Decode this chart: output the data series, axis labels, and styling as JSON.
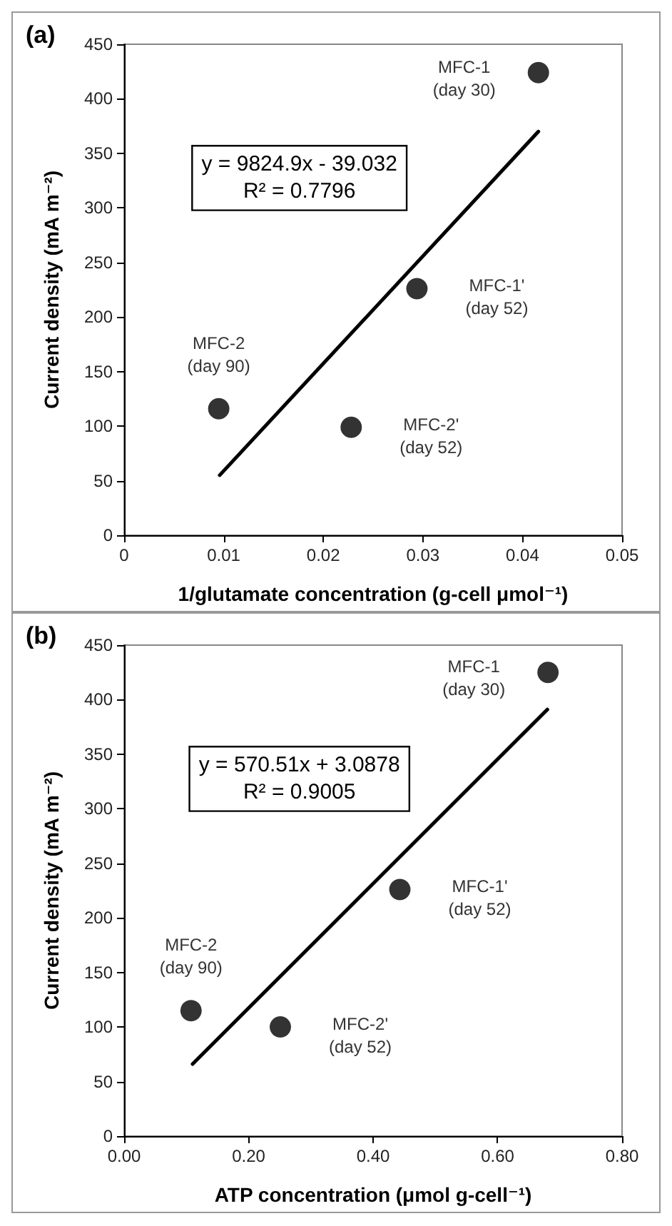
{
  "chart_data": [
    {
      "type": "scatter",
      "title": "(a)",
      "xlabel": "1/glutamate concentration (g-cell μmol⁻¹)",
      "ylabel": "Current density (mA m⁻²)",
      "marker": "circle",
      "x": [
        0.0416,
        0.0294,
        0.0095,
        0.0228
      ],
      "series": [
        {
          "color": "#000000",
          "values": [
            424,
            226,
            116,
            99
          ]
        },
        {
          "type": "line",
          "color": "#000000",
          "marker": "none",
          "x": [
            0.0096,
            0.0416
          ],
          "values": [
            55,
            370
          ]
        }
      ],
      "xlim": [
        0,
        0.05
      ],
      "xticks": [
        0,
        0.01,
        0.02,
        0.03,
        0.04,
        0.05
      ],
      "ylim": [
        0,
        450
      ],
      "yticks": [
        0,
        50,
        100,
        150,
        200,
        250,
        300,
        350,
        400,
        450
      ],
      "annotations": [
        "y = 9824.9x - 39.032\nR² = 0.7796",
        {
          "text": "MFC-1\n(day 30)",
          "x": 0.0416,
          "y": 424
        },
        {
          "text": "MFC-1'\n(day 52)",
          "x": 0.0294,
          "y": 226
        },
        {
          "text": "MFC-2\n(day 90)",
          "x": 0.0095,
          "y": 116
        },
        {
          "text": "MFC-2'\n(day 52)",
          "x": 0.0228,
          "y": 99
        }
      ]
    },
    {
      "type": "scatter",
      "title": "(b)",
      "xlabel": "ATP concentration (μmol g-cell⁻¹)",
      "ylabel": "Current density (mA m⁻²)",
      "marker": "circle",
      "x": [
        0.681,
        0.443,
        0.1075,
        0.251
      ],
      "series": [
        {
          "color": "#000000",
          "values": [
            425,
            226,
            115,
            100
          ]
        },
        {
          "type": "line",
          "color": "#000000",
          "marker": "none",
          "x": [
            0.11,
            0.68
          ],
          "values": [
            66,
            391
          ]
        }
      ],
      "xlim": [
        0,
        0.8
      ],
      "xticks": [
        {
          "value": 0,
          "label": "0.00"
        },
        {
          "value": 0.2,
          "label": "0.20"
        },
        {
          "value": 0.4,
          "label": "0.40"
        },
        {
          "value": 0.6,
          "label": "0.60"
        },
        {
          "value": 0.8,
          "label": "0.80"
        }
      ],
      "ylim": [
        0,
        450
      ],
      "yticks": [
        0,
        50,
        100,
        150,
        200,
        250,
        300,
        350,
        400,
        450
      ],
      "annotations": [
        "y = 570.51x + 3.0878\nR² = 0.9005",
        {
          "text": "MFC-1\n(day 30)",
          "x": 0.681,
          "y": 425
        },
        {
          "text": "MFC-1'\n(day 52)",
          "x": 0.443,
          "y": 226
        },
        {
          "text": "MFC-2\n(day 90)",
          "x": 0.1075,
          "y": 115
        },
        {
          "text": "MFC-2'\n(day 52)",
          "x": 0.251,
          "y": 100
        }
      ]
    }
  ]
}
